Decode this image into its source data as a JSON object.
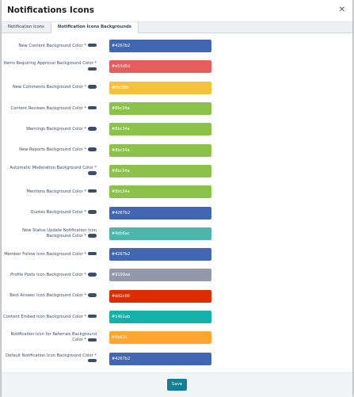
{
  "header": {
    "title": "Notifications Icons"
  },
  "tabs": [
    "Notification Icons",
    "Notification Icons Backgrounds"
  ],
  "active_tab": 1,
  "rows": [
    {
      "label": "New Content Background Color *",
      "value": "#4267b2"
    },
    {
      "label": "Items Requiring Approval Background Color *",
      "value": "#e55d5d"
    },
    {
      "label": "New Comments Background Color *",
      "value": "#f5c33b"
    },
    {
      "label": "Content Reviews Background Color *",
      "value": "#8bc34a"
    },
    {
      "label": "Warnings Background Color *",
      "value": "#8bc34a"
    },
    {
      "label": "New Reports Background Color *",
      "value": "#8bc34a"
    },
    {
      "label": "Automatic Moderation Background Color *",
      "value": "#8bc34a"
    },
    {
      "label": "Mentions Background Color *",
      "value": "#8bc34a"
    },
    {
      "label": "Quotes Background Color *",
      "value": "#4267b2"
    },
    {
      "label": "New Status Update Notification Icon Background Color *",
      "value": "#4db6ac"
    },
    {
      "label": "Member Follow Icon Background Color *",
      "value": "#4267b2"
    },
    {
      "label": "Profile Posts Icon Background Color *",
      "value": "#9199aa"
    },
    {
      "label": "Best Answer Icon Background Color *",
      "value": "#dd2c00"
    },
    {
      "label": "Content Embed Icon Background Color *",
      "value": "#14b1ab"
    },
    {
      "label": "Notification Icon for Referrals Background Color *",
      "value": "#ffa631"
    },
    {
      "label": "Default Notification Icon Background Color *",
      "value": "#4267b2"
    }
  ],
  "button": "Save"
}
